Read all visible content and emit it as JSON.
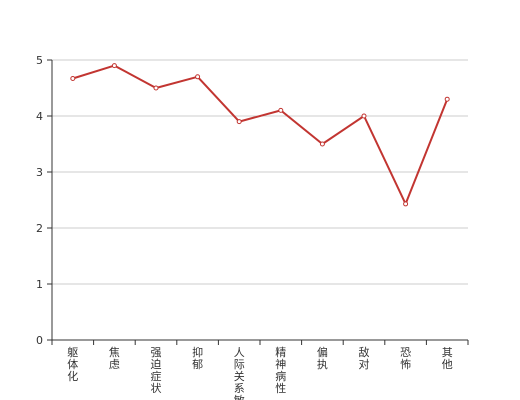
{
  "colors": {
    "line": "#c23531",
    "grid": "#cccccc",
    "axis": "#333333",
    "text": "#333333",
    "point_fill": "#ffffff"
  },
  "chart_data": {
    "type": "line",
    "categories": [
      "躯体化",
      "焦虑",
      "强迫症状",
      "抑郁",
      "人际关系敏感",
      "精神病性",
      "偏执",
      "敌对",
      "恐怖",
      "其他"
    ],
    "series": [
      {
        "values": [
          4.67,
          4.9,
          4.5,
          4.7,
          3.9,
          4.1,
          3.5,
          4.0,
          2.43,
          4.3
        ]
      }
    ],
    "yticks": [
      "0",
      "1",
      "2",
      "3",
      "4",
      "5"
    ],
    "ylim": [
      0,
      5
    ],
    "grid": true,
    "xlabel": "",
    "ylabel": ""
  }
}
